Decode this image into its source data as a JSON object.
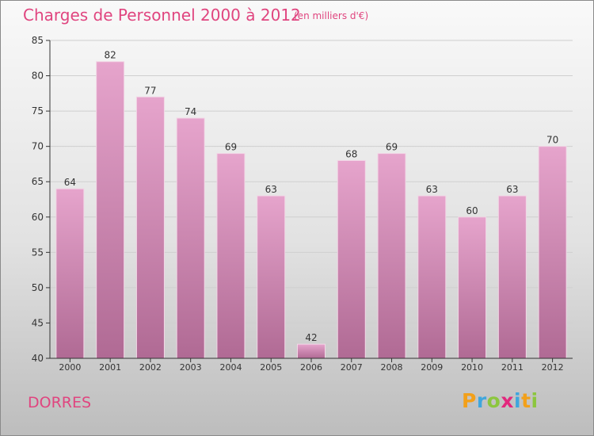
{
  "header": {
    "title": "Charges de Personnel 2000 à 2012",
    "subtitle": "(en milliers d'€)"
  },
  "footer": {
    "commune": "DORRES",
    "logo_text": "Proxiti"
  },
  "colors": {
    "title": "#e0457f",
    "bar_top": "#e6a4cc",
    "bar_bottom": "#b06a94",
    "axis": "#333333",
    "grid": "#cfcfcf"
  },
  "chart_data": {
    "type": "bar",
    "title": "Charges de Personnel 2000 à 2012",
    "subtitle": "(en milliers d'€)",
    "categories": [
      "2000",
      "2001",
      "2002",
      "2003",
      "2004",
      "2005",
      "2006",
      "2007",
      "2008",
      "2009",
      "2010",
      "2011",
      "2012"
    ],
    "values": [
      64,
      82,
      77,
      74,
      69,
      63,
      42,
      68,
      69,
      63,
      60,
      63,
      70
    ],
    "ylim": [
      40,
      85
    ],
    "yticks": [
      40,
      45,
      50,
      55,
      60,
      65,
      70,
      75,
      80,
      85
    ],
    "grid": true,
    "data_labels": true
  }
}
